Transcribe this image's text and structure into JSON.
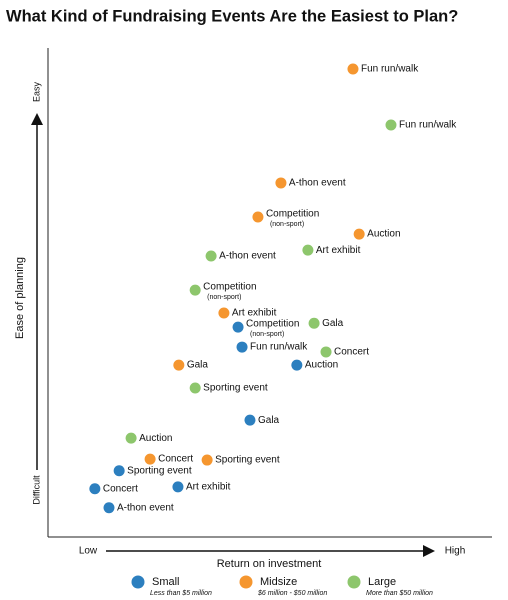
{
  "chart_data": {
    "type": "scatter",
    "title": "What Kind of Fundraising Events Are the Easiest to Plan?",
    "xlabel": "Return on investment",
    "ylabel": "Ease of planning",
    "x_end_labels": [
      "Low",
      "High"
    ],
    "y_end_labels": [
      "Difficult",
      "Easy"
    ],
    "xlim": [
      0,
      100
    ],
    "ylim": [
      0,
      100
    ],
    "series": [
      {
        "name": "Small",
        "description": "Less than $5 million",
        "color": "#2c7fbf",
        "x": [
          43.0,
          43.9,
          56.3,
          45.7,
          16.1,
          10.6,
          29.4,
          13.8
        ],
        "values": [
          43.1,
          39.0,
          35.3,
          24.0,
          13.6,
          9.9,
          10.3,
          6.0
        ],
        "labels": [
          "Competition",
          "Fun run/walk",
          "Auction",
          "Gala",
          "Sporting event",
          "Concert",
          "Art exhibit",
          "A-thon event"
        ],
        "sublabels": [
          "(non-sport)",
          null,
          null,
          null,
          null,
          null,
          null,
          null
        ]
      },
      {
        "name": "Midsize",
        "description": "$6 million - $50 million",
        "color": "#f5962f",
        "x": [
          69.0,
          52.7,
          47.5,
          70.4,
          39.8,
          29.6,
          23.1,
          36.0
        ],
        "values": [
          96.1,
          72.7,
          65.7,
          62.2,
          46.0,
          35.3,
          16.0,
          15.8
        ],
        "labels": [
          "Fun run/walk",
          "A-thon event",
          "Competition",
          "Auction",
          "Art exhibit",
          "Gala",
          "Concert",
          "Sporting event"
        ],
        "sublabels": [
          null,
          null,
          "(non-sport)",
          null,
          null,
          null,
          null,
          null
        ]
      },
      {
        "name": "Large",
        "description": "More than $50 million",
        "color": "#8dc66c",
        "x": [
          77.6,
          58.8,
          36.9,
          33.3,
          60.2,
          62.9,
          33.3,
          18.8
        ],
        "values": [
          84.6,
          58.9,
          57.7,
          50.7,
          43.9,
          38.0,
          30.6,
          20.3
        ],
        "labels": [
          "Fun run/walk",
          "Art exhibit",
          "A-thon event",
          "Competition",
          "Gala",
          "Concert",
          "Sporting event",
          "Auction"
        ],
        "sublabels": [
          null,
          null,
          null,
          "(non-sport)",
          null,
          null,
          null,
          null
        ]
      }
    ]
  }
}
